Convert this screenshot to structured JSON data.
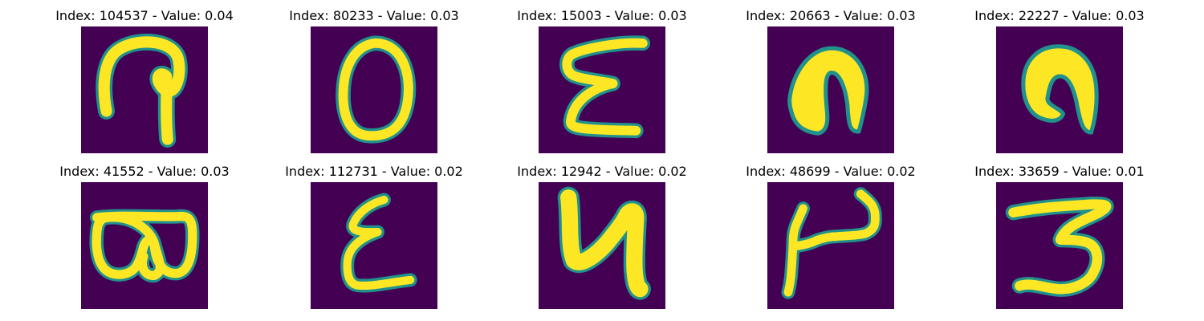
{
  "colors": {
    "background": "#440154",
    "stroke": "#fde725",
    "edge": "#21918c"
  },
  "panels": [
    {
      "title": "Index: 104537 - Value: 0.04",
      "glyph": "p-hook"
    },
    {
      "title": "Index: 80233 - Value: 0.03",
      "glyph": "o-ring"
    },
    {
      "title": "Index: 15003 - Value: 0.03",
      "glyph": "e-shape"
    },
    {
      "title": "Index: 20663 - Value: 0.03",
      "glyph": "n-arch-filled"
    },
    {
      "title": "Index: 22227 - Value: 0.03",
      "glyph": "n-arch-bold"
    },
    {
      "title": "Index: 41552 - Value: 0.03",
      "glyph": "b-loop"
    },
    {
      "title": "Index: 112731 - Value: 0.02",
      "glyph": "e-script"
    },
    {
      "title": "Index: 12942 - Value: 0.02",
      "glyph": "y-four"
    },
    {
      "title": "Index: 48699 - Value: 0.02",
      "glyph": "mu-shape"
    },
    {
      "title": "Index: 33659 - Value: 0.01",
      "glyph": "three"
    }
  ]
}
